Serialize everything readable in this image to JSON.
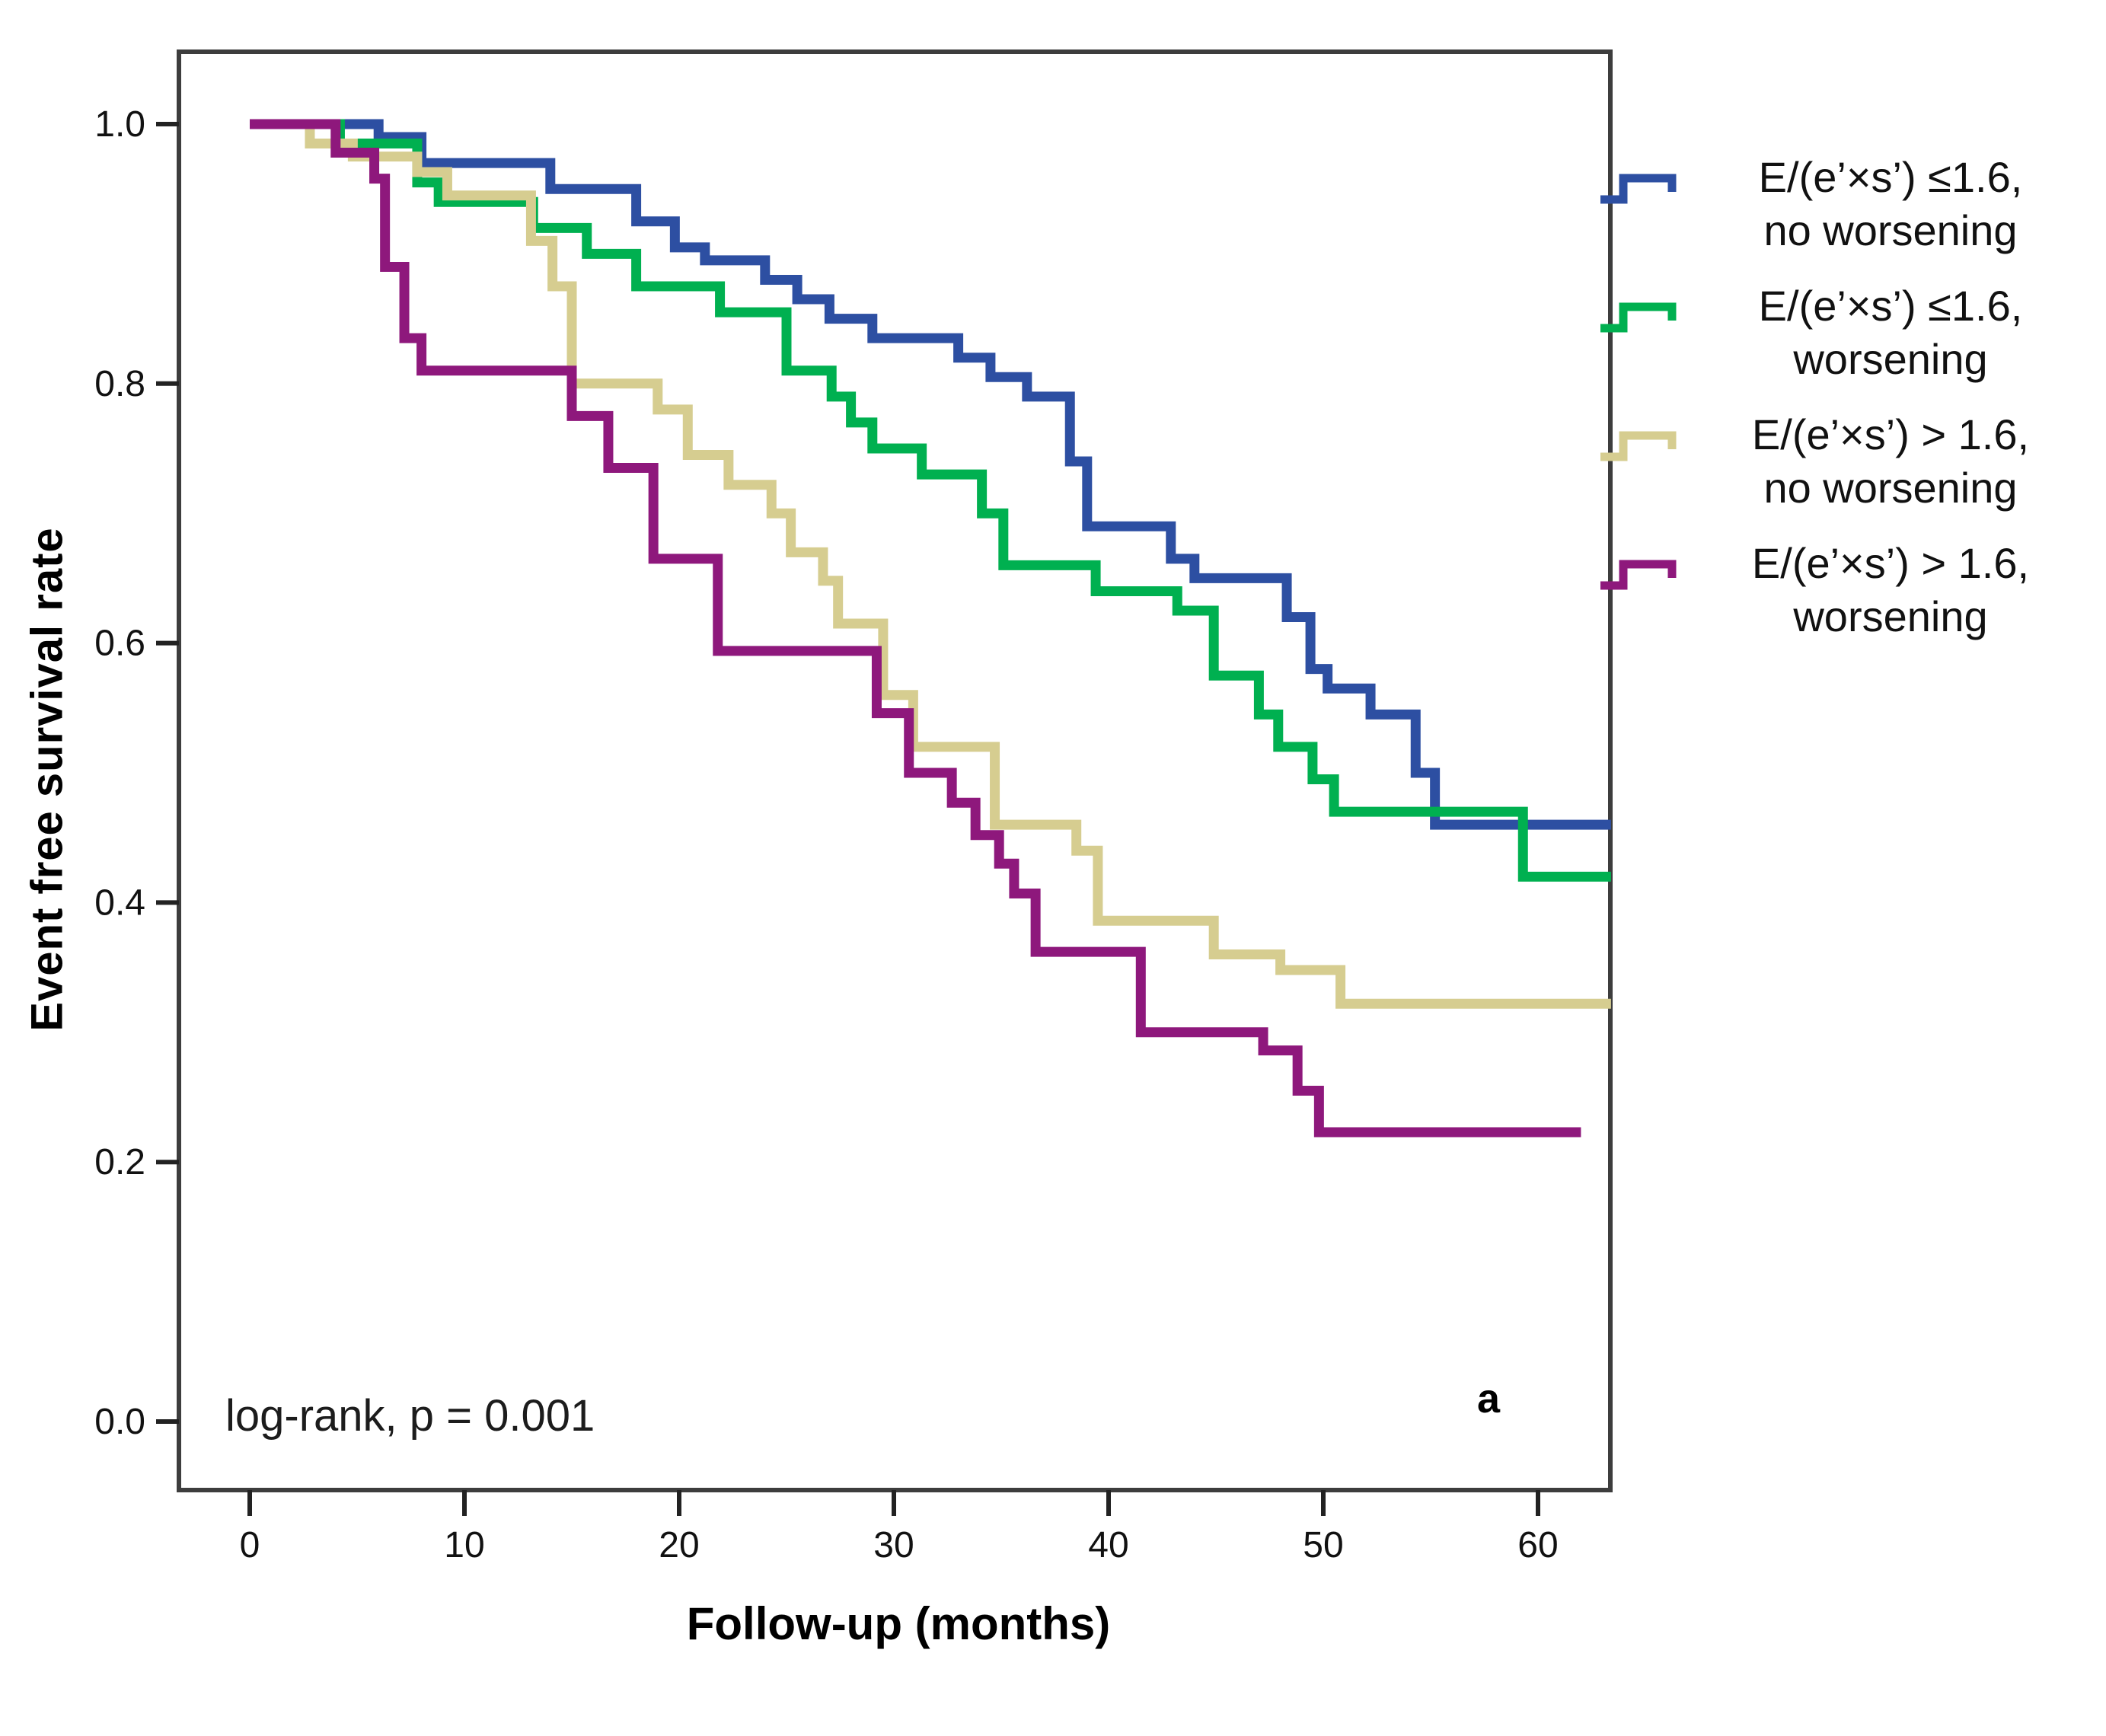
{
  "figure": {
    "panel_label": "a",
    "annotation": "log-rank, p = 0.001"
  },
  "legend": {
    "items": [
      {
        "line1": "E/(e’×s’) ≤1.6,",
        "line2": "no worsening",
        "color": "#2d4fa2"
      },
      {
        "line1": "E/(e’×s’) ≤1.6,",
        "line2": "worsening",
        "color": "#00b050"
      },
      {
        "line1": "E/(e’×s’) > 1.6,",
        "line2": "no worsening",
        "color": "#d6cd90"
      },
      {
        "line1": "E/(e’×s’) > 1.6,",
        "line2": "worsening",
        "color": "#8e187c"
      }
    ]
  },
  "chart_data": {
    "type": "line",
    "subtype": "kaplan-meier-step",
    "title": "",
    "xlabel": "Follow-up (months)",
    "ylabel": "Event free survival rate",
    "xlim": [
      0,
      63.4
    ],
    "ylim": [
      0.0,
      1.05
    ],
    "xticks": [
      0,
      10,
      20,
      30,
      40,
      50,
      60
    ],
    "ytick_labels": [
      "1.0",
      "0.8",
      "0.6",
      "0.4",
      "0.2",
      "0.0"
    ],
    "ytick_values": [
      1.0,
      0.8,
      0.6,
      0.4,
      0.2,
      0.0
    ],
    "grid": false,
    "legend_position": "right",
    "annotations": [
      {
        "text": "log-rank, p = 0.001",
        "x_month": 0,
        "y_survival": 0.0
      },
      {
        "text": "a",
        "x_month": 57,
        "y_survival": 0.02
      }
    ],
    "series": [
      {
        "name": "E/(e’×s’) ≤1.6, no worsening",
        "color": "#2d4fa2",
        "points": [
          [
            0,
            1.0
          ],
          [
            6,
            0.99
          ],
          [
            8,
            0.97
          ],
          [
            14,
            0.95
          ],
          [
            18,
            0.925
          ],
          [
            19.8,
            0.905
          ],
          [
            21.2,
            0.895
          ],
          [
            24,
            0.88
          ],
          [
            25.5,
            0.865
          ],
          [
            27,
            0.85
          ],
          [
            29,
            0.835
          ],
          [
            33,
            0.82
          ],
          [
            34.5,
            0.805
          ],
          [
            36.2,
            0.79
          ],
          [
            38.2,
            0.74
          ],
          [
            39,
            0.69
          ],
          [
            42.9,
            0.665
          ],
          [
            44,
            0.65
          ],
          [
            48.3,
            0.62
          ],
          [
            49.4,
            0.58
          ],
          [
            50.2,
            0.565
          ],
          [
            52.2,
            0.545
          ],
          [
            54.3,
            0.5
          ],
          [
            55.2,
            0.46
          ],
          [
            63.4,
            0.46
          ]
        ]
      },
      {
        "name": "E/(e’×s’) ≤1.6, worsening",
        "color": "#00b050",
        "points": [
          [
            0,
            1.0
          ],
          [
            4.2,
            0.985
          ],
          [
            7.8,
            0.955
          ],
          [
            8.8,
            0.94
          ],
          [
            13.2,
            0.92
          ],
          [
            15.7,
            0.9
          ],
          [
            18,
            0.875
          ],
          [
            21.9,
            0.855
          ],
          [
            25,
            0.81
          ],
          [
            27.1,
            0.79
          ],
          [
            28,
            0.77
          ],
          [
            29,
            0.75
          ],
          [
            31.3,
            0.73
          ],
          [
            34.1,
            0.7
          ],
          [
            35.1,
            0.66
          ],
          [
            39.4,
            0.64
          ],
          [
            43.2,
            0.625
          ],
          [
            44.9,
            0.575
          ],
          [
            47,
            0.545
          ],
          [
            47.9,
            0.52
          ],
          [
            49.5,
            0.495
          ],
          [
            50.5,
            0.47
          ],
          [
            59.3,
            0.42
          ],
          [
            63.4,
            0.42
          ]
        ]
      },
      {
        "name": "E/(e’×s’) > 1.6, no worsening",
        "color": "#d6cd90",
        "points": [
          [
            0,
            1.0
          ],
          [
            2.8,
            0.985
          ],
          [
            4.8,
            0.975
          ],
          [
            7.8,
            0.963
          ],
          [
            9.2,
            0.945
          ],
          [
            13.1,
            0.91
          ],
          [
            14.1,
            0.875
          ],
          [
            15,
            0.8
          ],
          [
            19,
            0.78
          ],
          [
            20.4,
            0.745
          ],
          [
            22.3,
            0.722
          ],
          [
            24.3,
            0.7
          ],
          [
            25.2,
            0.67
          ],
          [
            26.7,
            0.648
          ],
          [
            27.4,
            0.615
          ],
          [
            29.5,
            0.56
          ],
          [
            30.9,
            0.52
          ],
          [
            34.7,
            0.46
          ],
          [
            38.5,
            0.44
          ],
          [
            39.5,
            0.386
          ],
          [
            44.9,
            0.36
          ],
          [
            48,
            0.348
          ],
          [
            50.8,
            0.322
          ],
          [
            63.4,
            0.322
          ]
        ]
      },
      {
        "name": "E/(e’×s’) > 1.6, worsening",
        "color": "#8e187c",
        "points": [
          [
            0,
            1.0
          ],
          [
            4,
            0.978
          ],
          [
            5.8,
            0.958
          ],
          [
            6.3,
            0.89
          ],
          [
            7.2,
            0.835
          ],
          [
            8,
            0.81
          ],
          [
            15,
            0.775
          ],
          [
            16.7,
            0.735
          ],
          [
            18.8,
            0.665
          ],
          [
            21.8,
            0.594
          ],
          [
            29.2,
            0.546
          ],
          [
            30.7,
            0.5
          ],
          [
            32.7,
            0.477
          ],
          [
            33.8,
            0.452
          ],
          [
            34.9,
            0.43
          ],
          [
            35.6,
            0.407
          ],
          [
            36.6,
            0.362
          ],
          [
            41.5,
            0.3
          ],
          [
            47.2,
            0.286
          ],
          [
            48.8,
            0.255
          ],
          [
            49.8,
            0.223
          ],
          [
            62,
            0.223
          ]
        ]
      }
    ]
  }
}
